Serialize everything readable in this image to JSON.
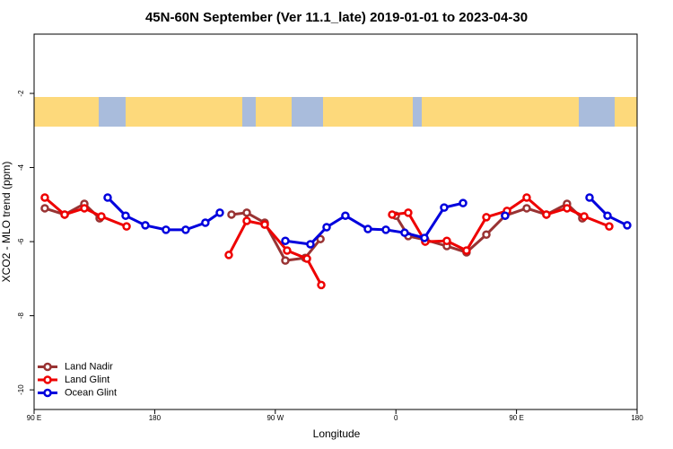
{
  "chart_data": {
    "type": "line",
    "title": "45N-60N September (Ver 11.1_late)   2019-01-01 to 2023-04-30",
    "xlabel": "Longitude",
    "ylabel": "XCO2 - MLO trend (ppm)",
    "xlim": [
      90,
      540
    ],
    "ylim": [
      -10.53,
      -0.4
    ],
    "xticks": [
      {
        "value": 90,
        "label": "90 E"
      },
      180,
      {
        "value": 270,
        "label": "90 W"
      },
      {
        "value": 360,
        "label": "0"
      },
      {
        "value": 450,
        "label": "90 E"
      },
      {
        "value": 540,
        "label": "180"
      }
    ],
    "yticks": [
      -2,
      -4,
      -6,
      -8,
      -10
    ],
    "legend": "bottomleft",
    "series": [
      {
        "name": "Land Nadir",
        "color": "#993333",
        "x": [
          98.0,
          112.8,
          127.5,
          138.9,
          null,
          237.3,
          248.7,
          262.1,
          277.5,
          292.3,
          303.7,
          null,
          359.9,
          369.2,
          381.9,
          398.0,
          412.7,
          427.5,
          441.5,
          457.6,
          472.3,
          487.7,
          499.1
        ],
        "values": [
          -5.1,
          -5.27,
          -4.98,
          -5.37,
          null,
          -5.27,
          -5.22,
          -5.49,
          -6.51,
          -6.44,
          -5.93,
          null,
          -5.3,
          -5.85,
          -5.95,
          -6.12,
          -6.29,
          -5.81,
          -5.3,
          -5.1,
          -5.27,
          -4.98,
          -5.37
        ]
      },
      {
        "name": "Land Glint",
        "color": "#ee0000",
        "x": [
          98.0,
          112.8,
          127.5,
          140.2,
          159.0,
          null,
          235.3,
          248.7,
          262.1,
          278.8,
          293.6,
          304.3,
          null,
          357.2,
          369.2,
          381.9,
          398.0,
          412.7,
          427.5,
          442.9,
          457.6,
          472.3,
          487.7,
          500.5,
          519.2
        ],
        "values": [
          -4.81,
          -5.27,
          -5.1,
          -5.32,
          -5.59,
          null,
          -6.36,
          -5.44,
          -5.54,
          -6.24,
          -6.46,
          -7.17,
          null,
          -5.27,
          -5.22,
          -6.0,
          -5.98,
          -6.24,
          -5.34,
          -5.17,
          -4.81,
          -5.27,
          -5.1,
          -5.32,
          -5.59
        ]
      },
      {
        "name": "Ocean Glint",
        "color": "#0000dd",
        "x": [
          144.9,
          158.3,
          173.0,
          188.4,
          203.1,
          217.8,
          228.6,
          null,
          277.5,
          296.2,
          308.3,
          322.3,
          339.1,
          352.5,
          366.5,
          381.3,
          396.0,
          410.1,
          null,
          441.5,
          null,
          504.5,
          517.9,
          532.6
        ],
        "values": [
          -4.81,
          -5.3,
          -5.56,
          -5.68,
          -5.68,
          -5.49,
          -5.22,
          null,
          -5.98,
          -6.07,
          -5.61,
          -5.3,
          -5.66,
          -5.68,
          -5.76,
          -5.9,
          -5.08,
          -4.96,
          null,
          -5.3,
          null,
          -4.81,
          -5.3,
          -5.56
        ]
      }
    ]
  }
}
